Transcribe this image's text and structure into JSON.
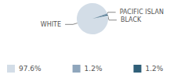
{
  "chart_data": {
    "type": "pie",
    "categories": [
      "WHITE",
      "PACIFIC ISLAN",
      "BLACK"
    ],
    "values": [
      97.6,
      1.2,
      1.2
    ],
    "value_labels": [
      "97.6%",
      "1.2%",
      "1.2%"
    ],
    "colors": [
      "#d3dde7",
      "#8fa6bc",
      "#2f5f78"
    ],
    "legend": "bottom"
  }
}
